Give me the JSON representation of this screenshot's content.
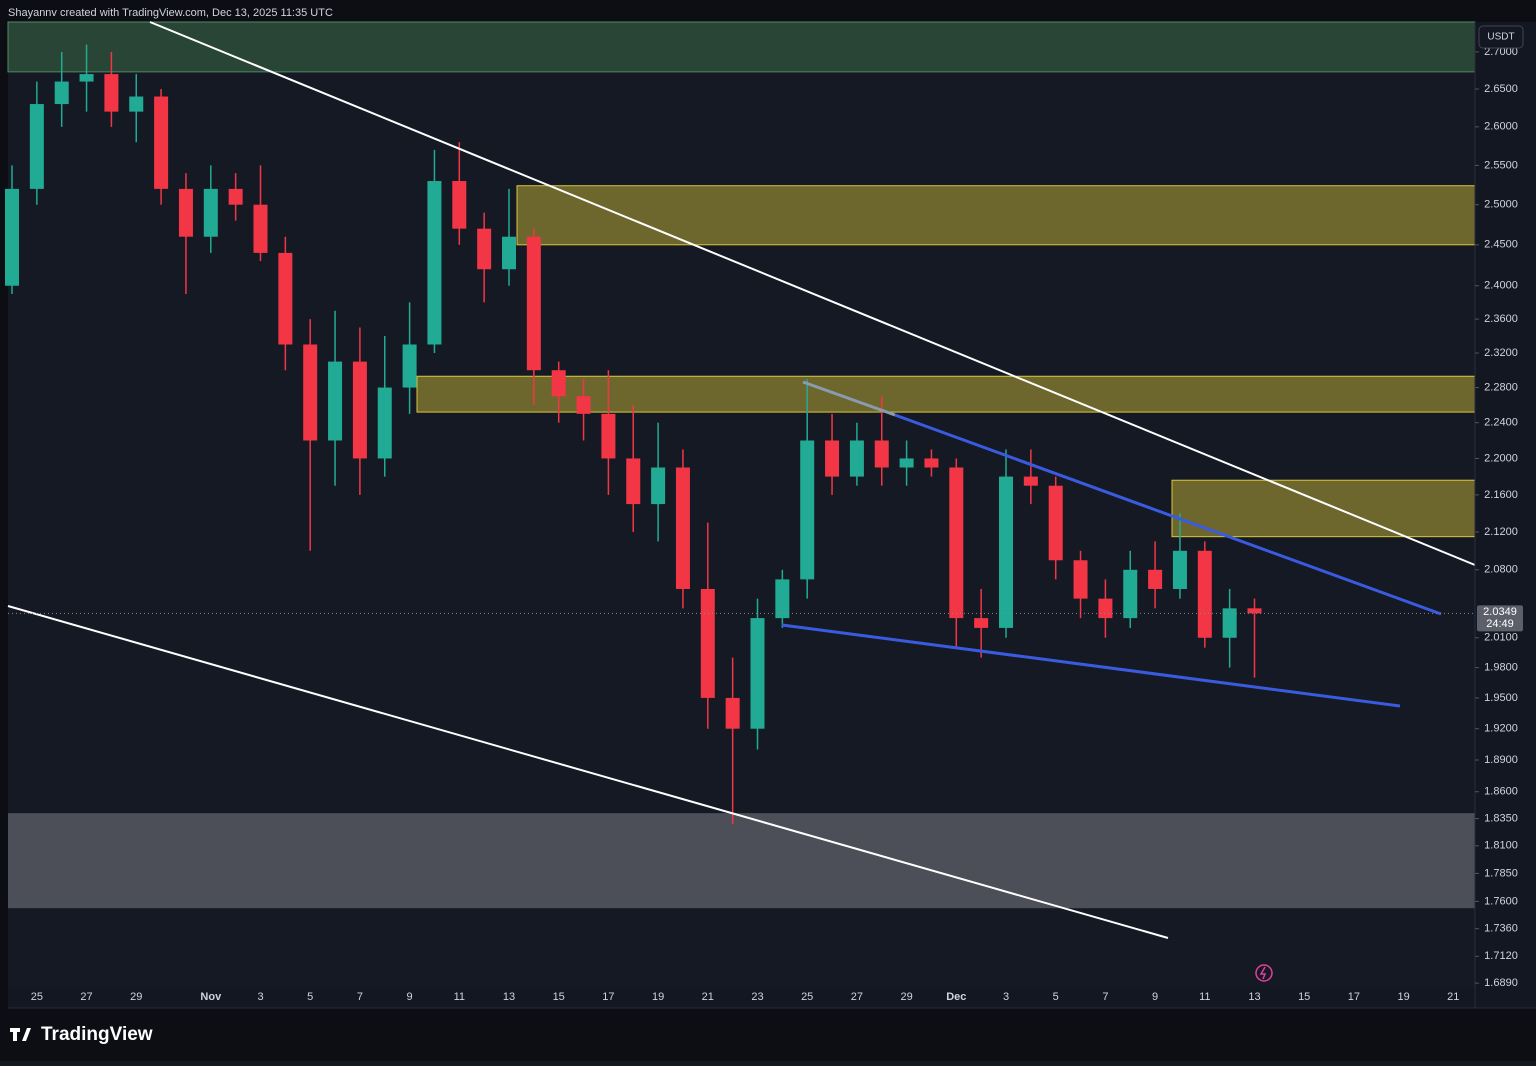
{
  "header": "Shayannv created with TradingView.com, Dec 13, 2025 11:35 UTC",
  "currency_button": "USDT",
  "brand": "TradingView",
  "chart_data": {
    "type": "candlestick",
    "log_scale": true,
    "up_color": "#22ab94",
    "down_color": "#f23645",
    "categories": [
      null,
      "25",
      null,
      "27",
      null,
      "29",
      null,
      null,
      "Nov",
      null,
      "3",
      null,
      "5",
      null,
      "7",
      null,
      "9",
      null,
      "11",
      null,
      "13",
      null,
      "15",
      null,
      "17",
      null,
      "19",
      null,
      "21",
      null,
      "23",
      null,
      "25",
      null,
      "27",
      null,
      "29",
      null,
      "Dec",
      null,
      "3",
      null,
      "5",
      null,
      "7",
      null,
      "9",
      null,
      "11",
      null,
      "13",
      null,
      "15",
      null,
      "17",
      null,
      "19",
      null,
      "21",
      null
    ],
    "open": [
      2.4,
      2.52,
      2.63,
      2.66,
      2.67,
      2.62,
      2.64,
      2.52,
      2.46,
      2.52,
      2.5,
      2.44,
      2.33,
      2.22,
      2.31,
      2.2,
      2.28,
      2.33,
      2.53,
      2.47,
      2.42,
      2.46,
      2.3,
      2.27,
      2.25,
      2.2,
      2.15,
      2.19,
      2.06,
      1.95,
      1.92,
      2.03,
      2.07,
      2.22,
      2.18,
      2.22,
      2.19,
      2.2,
      2.19,
      2.03,
      2.02,
      2.18,
      2.17,
      2.09,
      2.05,
      2.03,
      2.08,
      2.06,
      2.1,
      2.01,
      2.04,
      null,
      null,
      null,
      null,
      null,
      null,
      null,
      null,
      null
    ],
    "high": [
      2.55,
      2.66,
      2.7,
      2.71,
      2.7,
      2.67,
      2.65,
      2.54,
      2.55,
      2.54,
      2.55,
      2.46,
      2.36,
      2.37,
      2.35,
      2.34,
      2.38,
      2.57,
      2.58,
      2.49,
      2.52,
      2.47,
      2.31,
      2.29,
      2.3,
      2.26,
      2.24,
      2.21,
      2.13,
      1.99,
      2.05,
      2.08,
      2.29,
      2.25,
      2.24,
      2.27,
      2.22,
      2.21,
      2.2,
      2.06,
      2.21,
      2.21,
      2.18,
      2.1,
      2.07,
      2.1,
      2.11,
      2.14,
      2.11,
      2.06,
      2.05,
      null,
      null,
      null,
      null,
      null,
      null,
      null,
      null,
      null
    ],
    "low": [
      2.39,
      2.5,
      2.6,
      2.62,
      2.6,
      2.58,
      2.5,
      2.39,
      2.44,
      2.48,
      2.43,
      2.3,
      2.1,
      2.17,
      2.16,
      2.18,
      2.25,
      2.32,
      2.45,
      2.38,
      2.4,
      2.26,
      2.24,
      2.22,
      2.16,
      2.12,
      2.11,
      2.04,
      1.92,
      1.83,
      1.9,
      2.02,
      2.05,
      2.16,
      2.17,
      2.17,
      2.17,
      2.18,
      2.0,
      1.99,
      2.01,
      2.15,
      2.07,
      2.03,
      2.01,
      2.02,
      2.04,
      2.05,
      2.0,
      1.98,
      1.97,
      null,
      null,
      null,
      null,
      null,
      null,
      null,
      null,
      null
    ],
    "close": [
      2.52,
      2.63,
      2.66,
      2.67,
      2.62,
      2.64,
      2.52,
      2.46,
      2.52,
      2.5,
      2.44,
      2.33,
      2.22,
      2.31,
      2.2,
      2.28,
      2.33,
      2.53,
      2.47,
      2.42,
      2.46,
      2.3,
      2.27,
      2.25,
      2.2,
      2.15,
      2.19,
      2.06,
      1.95,
      1.92,
      2.03,
      2.07,
      2.22,
      2.18,
      2.22,
      2.19,
      2.2,
      2.19,
      2.03,
      2.02,
      2.18,
      2.17,
      2.09,
      2.05,
      2.03,
      2.08,
      2.06,
      2.1,
      2.01,
      2.04,
      2.0349,
      null,
      null,
      null,
      null,
      null,
      null,
      null,
      null,
      null
    ],
    "last_price": {
      "value": 2.0349,
      "label": "2.0349"
    },
    "countdown": "24:49",
    "ylim": [
      1.668,
      2.741
    ],
    "yticks": [
      {
        "value": 2.7,
        "label": "2.7000"
      },
      {
        "value": 2.65,
        "label": "2.6500"
      },
      {
        "value": 2.6,
        "label": "2.6000"
      },
      {
        "value": 2.55,
        "label": "2.5500"
      },
      {
        "value": 2.5,
        "label": "2.5000"
      },
      {
        "value": 2.45,
        "label": "2.4500"
      },
      {
        "value": 2.4,
        "label": "2.4000"
      },
      {
        "value": 2.36,
        "label": "2.3600"
      },
      {
        "value": 2.32,
        "label": "2.3200"
      },
      {
        "value": 2.28,
        "label": "2.2800"
      },
      {
        "value": 2.24,
        "label": "2.2400"
      },
      {
        "value": 2.2,
        "label": "2.2000"
      },
      {
        "value": 2.16,
        "label": "2.1600"
      },
      {
        "value": 2.12,
        "label": "2.1200"
      },
      {
        "value": 2.08,
        "label": "2.0800"
      },
      {
        "value": 2.01,
        "label": "2.0100"
      },
      {
        "value": 1.98,
        "label": "1.9800"
      },
      {
        "value": 1.95,
        "label": "1.9500"
      },
      {
        "value": 1.92,
        "label": "1.9200"
      },
      {
        "value": 1.89,
        "label": "1.8900"
      },
      {
        "value": 1.86,
        "label": "1.8600"
      },
      {
        "value": 1.835,
        "label": "1.8350"
      },
      {
        "value": 1.81,
        "label": "1.8100"
      },
      {
        "value": 1.785,
        "label": "1.7850"
      },
      {
        "value": 1.76,
        "label": "1.7600"
      },
      {
        "value": 1.736,
        "label": "1.7360"
      },
      {
        "value": 1.712,
        "label": "1.7120"
      },
      {
        "value": 1.689,
        "label": "1.6890"
      }
    ],
    "zones": [
      {
        "color": "#2b4a38",
        "range": [
          2.673,
          2.741
        ]
      },
      {
        "color": "#77702f",
        "range": [
          2.45,
          2.524
        ]
      },
      {
        "color": "#77702f",
        "range": [
          2.252,
          2.293
        ]
      },
      {
        "color": "#77702f",
        "range": [
          2.115,
          2.176
        ]
      },
      {
        "color": "#4f525c",
        "range": [
          1.754,
          1.84
        ]
      }
    ]
  }
}
